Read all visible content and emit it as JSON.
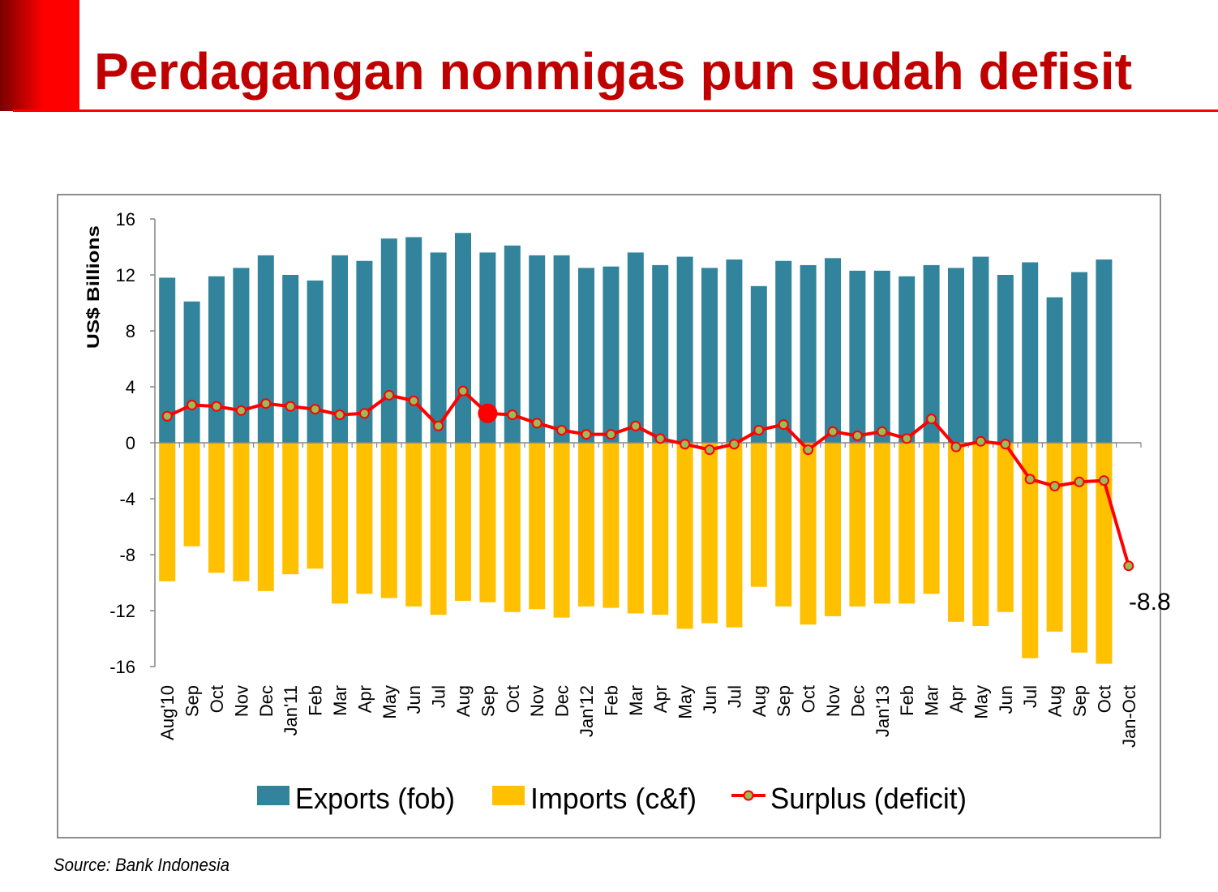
{
  "slide": {
    "title": "Perdagangan nonmigas pun sudah defisit",
    "source": "Source: Bank Indonesia",
    "colors": {
      "title": "#C00000",
      "accent": "#FF0000",
      "exports": "#31849B",
      "imports": "#FFC000",
      "surplus": "#FF0000",
      "marker": "#9BBB59"
    }
  },
  "chart_data": {
    "type": "bar",
    "title": "",
    "ylabel": "US$ Billions",
    "xlabel": "",
    "ylim": [
      -16,
      16
    ],
    "yticks": [
      16,
      12,
      8,
      4,
      0,
      -4,
      -8,
      -12,
      -16
    ],
    "legend_position": "bottom",
    "categories": [
      "Aug'10",
      "Sep",
      "Oct",
      "Nov",
      "Dec",
      "Jan'11",
      "Feb",
      "Mar",
      "Apr",
      "May",
      "Jun",
      "Jul",
      "Aug",
      "Sep",
      "Oct",
      "Nov",
      "Dec",
      "Jan'12",
      "Feb",
      "Mar",
      "Apr",
      "May",
      "Jun",
      "Jul",
      "Aug",
      "Sep",
      "Oct",
      "Nov",
      "Dec",
      "Jan'13",
      "Feb",
      "Mar",
      "Apr",
      "May",
      "Jun",
      "Jul",
      "Aug",
      "Sep",
      "Oct",
      "Jan-Oct"
    ],
    "series": [
      {
        "name": "Exports (fob)",
        "type": "bar",
        "values": [
          11.8,
          10.1,
          11.9,
          12.5,
          13.4,
          12.0,
          11.6,
          13.4,
          13.0,
          14.6,
          14.7,
          13.6,
          15.0,
          13.6,
          14.1,
          13.4,
          13.4,
          12.5,
          12.6,
          13.6,
          12.7,
          13.3,
          12.5,
          13.1,
          11.2,
          13.0,
          12.7,
          13.2,
          12.3,
          12.3,
          11.9,
          12.7,
          12.5,
          13.3,
          12.0,
          12.9,
          10.4,
          12.2,
          13.1,
          null
        ]
      },
      {
        "name": "Imports (c&f)",
        "type": "bar",
        "values": [
          -9.9,
          -7.4,
          -9.3,
          -9.9,
          -10.6,
          -9.4,
          -9.0,
          -11.5,
          -10.8,
          -11.1,
          -11.7,
          -12.3,
          -11.3,
          -11.4,
          -12.1,
          -11.9,
          -12.5,
          -11.7,
          -11.8,
          -12.2,
          -12.3,
          -13.3,
          -12.9,
          -13.2,
          -10.3,
          -11.7,
          -13.0,
          -12.4,
          -11.7,
          -11.5,
          -11.5,
          -10.8,
          -12.8,
          -13.1,
          -12.1,
          -15.4,
          -13.5,
          -15.0,
          -15.8,
          null
        ]
      },
      {
        "name": "Surplus (deficit)",
        "type": "line",
        "values": [
          1.9,
          2.7,
          2.6,
          2.3,
          2.8,
          2.6,
          2.4,
          2.0,
          2.1,
          3.4,
          3.0,
          1.2,
          3.7,
          2.1,
          2.0,
          1.4,
          0.9,
          0.6,
          0.6,
          1.2,
          0.3,
          -0.1,
          -0.5,
          -0.1,
          0.9,
          1.3,
          -0.5,
          0.8,
          0.5,
          0.8,
          0.3,
          1.7,
          -0.3,
          0.1,
          -0.1,
          -2.6,
          -3.1,
          -2.8,
          -2.7,
          -8.8
        ]
      }
    ],
    "annotations": [
      {
        "category": "Jan-Oct",
        "text": "-8.8"
      }
    ]
  }
}
